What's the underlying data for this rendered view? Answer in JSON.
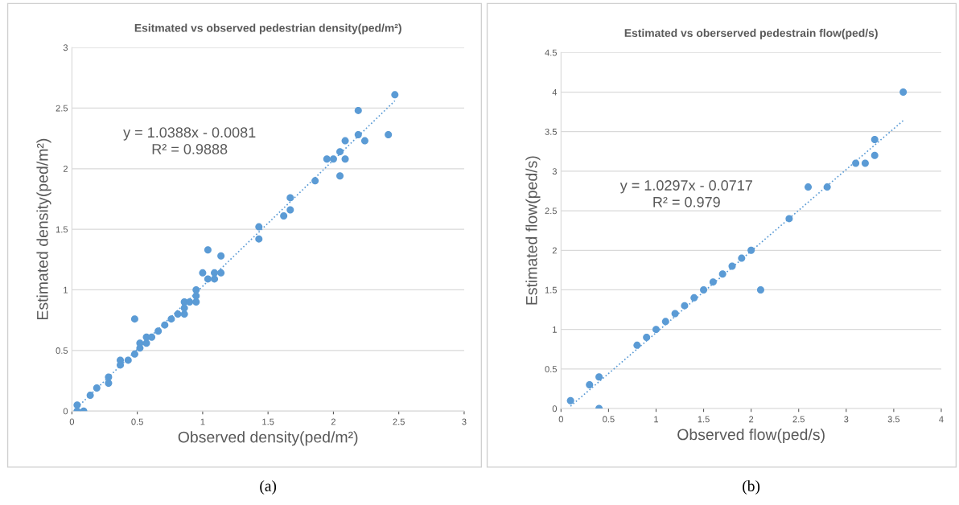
{
  "chart_data": [
    {
      "type": "scatter",
      "title": "Esitmated vs observed pedestrian density(ped/m²)",
      "xlabel": "Observed density(ped/m²)",
      "ylabel": "Estimated density(ped/m²)",
      "annotations": [
        "y = 1.0388x - 0.0081\nR² = 0.9888",
        "(a)"
      ],
      "xlim": [
        0,
        3
      ],
      "ylim": [
        0,
        3
      ],
      "xticks": [
        0,
        0.5,
        1,
        1.5,
        2,
        2.5,
        3
      ],
      "yticks": [
        0,
        0.5,
        1,
        1.5,
        2,
        2.5,
        3
      ],
      "grid": "y",
      "legend": false,
      "series": [
        {
          "marker": "circle",
          "color": "#5b9bd5",
          "x": [
            0.04,
            0.04,
            0.09,
            0.14,
            0.19,
            0.28,
            0.28,
            0.37,
            0.37,
            0.43,
            0.48,
            0.48,
            0.52,
            0.52,
            0.57,
            0.57,
            0.61,
            0.66,
            0.71,
            0.76,
            0.81,
            0.86,
            0.86,
            0.86,
            0.9,
            0.95,
            0.95,
            0.95,
            1.0,
            1.04,
            1.04,
            1.09,
            1.09,
            1.14,
            1.14,
            1.43,
            1.43,
            1.62,
            1.67,
            1.67,
            1.86,
            1.95,
            2.0,
            2.05,
            2.05,
            2.09,
            2.09,
            2.19,
            2.19,
            2.24,
            2.42,
            2.47
          ],
          "values": [
            0.05,
            0,
            0,
            0.13,
            0.19,
            0.28,
            0.23,
            0.42,
            0.38,
            0.42,
            0.47,
            0.76,
            0.52,
            0.56,
            0.56,
            0.61,
            0.61,
            0.66,
            0.71,
            0.76,
            0.8,
            0.8,
            0.85,
            0.9,
            0.9,
            0.9,
            0.95,
            1.0,
            1.14,
            1.33,
            1.09,
            1.09,
            1.14,
            1.14,
            1.28,
            1.52,
            1.42,
            1.61,
            1.66,
            1.76,
            1.9,
            2.08,
            2.08,
            2.14,
            1.94,
            2.23,
            2.08,
            2.48,
            2.28,
            2.23,
            2.28,
            2.61
          ]
        },
        {
          "type": "line",
          "marker": "none",
          "color": "#5b9bd5",
          "line_style": "dotted",
          "x": [
            0.04,
            2.47
          ],
          "values": [
            0.03,
            2.56
          ]
        }
      ]
    },
    {
      "type": "scatter",
      "title": "Estimated vs oberserved pedestrain flow(ped/s)",
      "xlabel": "Observed flow(ped/s)",
      "ylabel": "Estimated flow(ped/s)",
      "annotations": [
        "y = 1.0297x - 0.0717\nR² = 0.979",
        "(b)"
      ],
      "xlim": [
        0,
        4
      ],
      "ylim": [
        0,
        4.5
      ],
      "xticks": [
        0,
        0.5,
        1,
        1.5,
        2,
        2.5,
        3,
        3.5,
        4
      ],
      "yticks": [
        0,
        0.5,
        1,
        1.5,
        2,
        2.5,
        3,
        3.5,
        4,
        4.5
      ],
      "grid": "y",
      "legend": false,
      "series": [
        {
          "marker": "circle",
          "color": "#5b9bd5",
          "x": [
            0.1,
            0.3,
            0.4,
            0.4,
            0.8,
            0.9,
            1.0,
            1.1,
            1.2,
            1.3,
            1.4,
            1.5,
            1.6,
            1.7,
            1.8,
            1.9,
            2.0,
            2.1,
            2.4,
            2.6,
            2.8,
            3.1,
            3.2,
            3.3,
            3.3,
            3.6
          ],
          "values": [
            0.1,
            0.3,
            0.4,
            0,
            0.8,
            0.9,
            1.0,
            1.1,
            1.2,
            1.3,
            1.4,
            1.5,
            1.6,
            1.7,
            1.8,
            1.9,
            2.0,
            1.5,
            2.4,
            2.8,
            2.8,
            3.1,
            3.1,
            3.2,
            3.4,
            4.0
          ]
        },
        {
          "type": "line",
          "marker": "none",
          "color": "#5b9bd5",
          "line_style": "dotted",
          "x": [
            0.1,
            3.6
          ],
          "values": [
            0.03,
            3.64
          ]
        }
      ]
    }
  ]
}
